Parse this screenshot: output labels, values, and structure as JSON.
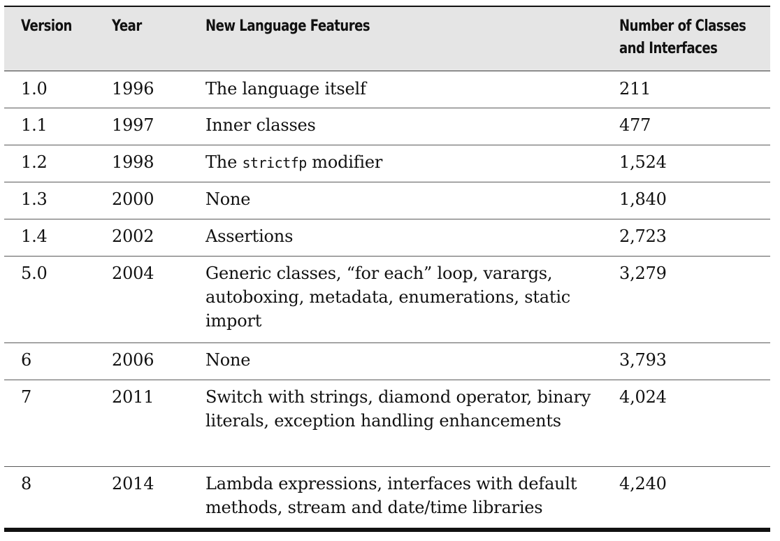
{
  "table": {
    "headers": {
      "version": "Version",
      "year": "Year",
      "features": "New Language Features",
      "classes_line1": "Number of Classes",
      "classes_line2": "and Interfaces"
    },
    "rows": [
      {
        "version": "1.0",
        "year": "1996",
        "features": "The language itself",
        "classes": "211"
      },
      {
        "version": "1.1",
        "year": "1997",
        "features": "Inner classes",
        "classes": "477"
      },
      {
        "version": "1.2",
        "year": "1998",
        "features_pre": "The ",
        "features_code": "strictfp",
        "features_post": " modifier",
        "classes": "1,524"
      },
      {
        "version": "1.3",
        "year": "2000",
        "features": "None",
        "classes": "1,840"
      },
      {
        "version": "1.4",
        "year": "2002",
        "features": "Assertions",
        "classes": "2,723"
      },
      {
        "version": "5.0",
        "year": "2004",
        "features": "Generic classes, “for each” loop, varargs, autoboxing, metadata, enumerations, static import",
        "classes": "3,279"
      },
      {
        "version": "6",
        "year": "2006",
        "features": "None",
        "classes": "3,793"
      },
      {
        "version": "7",
        "year": "2011",
        "features": "Switch with strings, diamond operator, binary literals, exception handling enhancements",
        "classes": "4,024"
      },
      {
        "version": "8",
        "year": "2014",
        "features": "Lambda expressions, interfaces with default methods, stream and date/time libraries",
        "classes": "4,240"
      }
    ]
  }
}
